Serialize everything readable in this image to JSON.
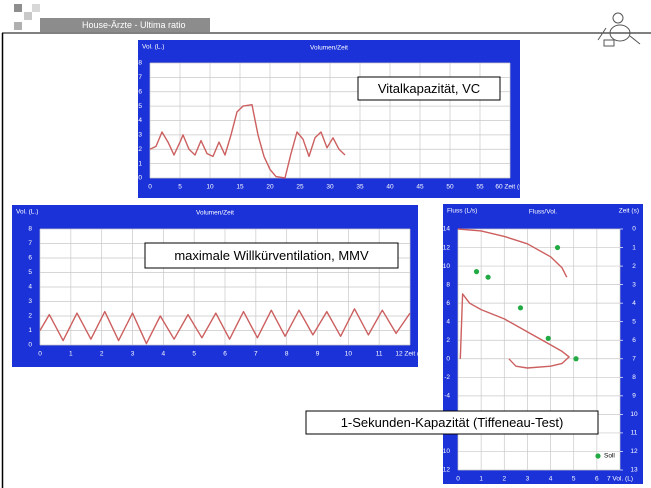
{
  "slide": {
    "title": "House-Ärzte - Ultima ratio"
  },
  "chart_data": [
    {
      "type": "line",
      "title": "Volumen/Zeit",
      "ylabel": "Vol. (L.)",
      "annotation": "Vitalkapazität, VC",
      "xlim": [
        0,
        60
      ],
      "xticks": [
        0,
        5,
        10,
        15,
        20,
        25,
        30,
        35,
        40,
        45,
        50,
        55,
        {
          "value": 60,
          "label": "60 Zeit (s)"
        }
      ],
      "ylim": [
        0,
        8
      ],
      "yticks": [
        0,
        1,
        2,
        3,
        4,
        5,
        6,
        7,
        8
      ],
      "grid": true,
      "series": [
        {
          "color": "#cc5f5f",
          "x": [
            0,
            1,
            2,
            3,
            4,
            5,
            5.5,
            6.5,
            7.5,
            8.5,
            9.5,
            10.5,
            11.5,
            12.5,
            13.5,
            14.5,
            15.5,
            17,
            18,
            19,
            20,
            21,
            22.5,
            23.5,
            24.5,
            25.5,
            26.5,
            27.5,
            28.5,
            29.5,
            30.5,
            31.5,
            32.5
          ],
          "values": [
            2,
            2.2,
            3.2,
            2.5,
            1.6,
            2.5,
            3.0,
            2,
            1.6,
            2.6,
            1.7,
            1.5,
            2.5,
            1.6,
            3,
            4.6,
            5,
            5.1,
            3,
            1.5,
            0.6,
            0.1,
            0,
            1.7,
            3.2,
            2.7,
            1.5,
            2.8,
            3.2,
            2.1,
            2.8,
            2.0,
            1.6
          ]
        }
      ]
    },
    {
      "type": "line",
      "title": "Volumen/Zeit",
      "ylabel": "Vol. (L.)",
      "annotation": "maximale Willkürventilation, MMV",
      "xlim": [
        0,
        12
      ],
      "xticks": [
        0,
        1,
        2,
        3,
        4,
        5,
        6,
        7,
        8,
        9,
        10,
        11,
        {
          "value": 12,
          "label": "12 Zeit (s)"
        }
      ],
      "ylim": [
        0,
        8
      ],
      "yticks": [
        0,
        1,
        2,
        3,
        4,
        5,
        6,
        7,
        8
      ],
      "grid": true,
      "series": [
        {
          "color": "#cc5f5f",
          "x": [
            0,
            0.3,
            0.75,
            1.2,
            1.65,
            2.1,
            2.55,
            3.0,
            3.45,
            3.9,
            4.35,
            4.8,
            5.25,
            5.7,
            6.15,
            6.6,
            7.05,
            7.5,
            7.95,
            8.4,
            8.85,
            9.3,
            9.75,
            10.2,
            10.65,
            11.1,
            11.55,
            12.0
          ],
          "values": [
            1.0,
            2.1,
            0.3,
            2.2,
            0.4,
            2.3,
            0.3,
            2.2,
            0.1,
            2.0,
            0.4,
            2.1,
            0.5,
            2.2,
            0.4,
            2.3,
            0.5,
            2.4,
            0.6,
            2.4,
            0.7,
            2.3,
            0.6,
            2.5,
            0.7,
            2.4,
            0.8,
            2.2
          ]
        }
      ]
    },
    {
      "type": "line",
      "title": "Fluss/Vol.",
      "ylabel": "Fluss (L/s)",
      "y2label": "Zeit (s)",
      "annotation": "1-Sekunden-Kapazität (Tiffeneau-Test)",
      "xlim": [
        0,
        7
      ],
      "xticks": [
        0,
        1,
        2,
        3,
        4,
        5,
        6,
        {
          "value": 7,
          "label": "7 Vol. (L)"
        }
      ],
      "ylim": [
        -12,
        14
      ],
      "yticks": [
        -12,
        -10,
        -8,
        -6,
        -4,
        -2,
        0,
        2,
        4,
        6,
        8,
        10,
        12,
        14
      ],
      "y2lim": [
        13,
        0
      ],
      "y2ticks": [
        0,
        1,
        2,
        3,
        4,
        5,
        6,
        7,
        8,
        9,
        10,
        11,
        12,
        13
      ],
      "grid": true,
      "legend": "lower right",
      "series": [
        {
          "color": "#cc5f5f",
          "x": [
            0.1,
            0.2,
            0.5,
            1,
            2,
            3,
            4,
            4.5,
            4.8,
            4.5,
            4,
            3,
            2.5,
            2.2
          ],
          "values": [
            0,
            7,
            6,
            5.3,
            4.3,
            2.9,
            1.5,
            0.8,
            0.2,
            -0.5,
            -0.8,
            -1,
            -0.8,
            0
          ]
        },
        {
          "color": "#cc5f5f",
          "axis": "y2",
          "x": [
            0,
            1,
            2,
            3,
            4,
            4.5,
            4.7
          ],
          "values": [
            0,
            0.1,
            0.4,
            0.8,
            1.5,
            2.1,
            2.6
          ]
        },
        {
          "type": "scatter",
          "name": "Soll",
          "color": "#22aa44",
          "x": [
            0.8,
            1.3,
            2.7,
            3.9,
            5.1,
            4.3
          ],
          "values": [
            9.4,
            8.8,
            5.5,
            2.2,
            0,
            12
          ]
        }
      ]
    }
  ]
}
